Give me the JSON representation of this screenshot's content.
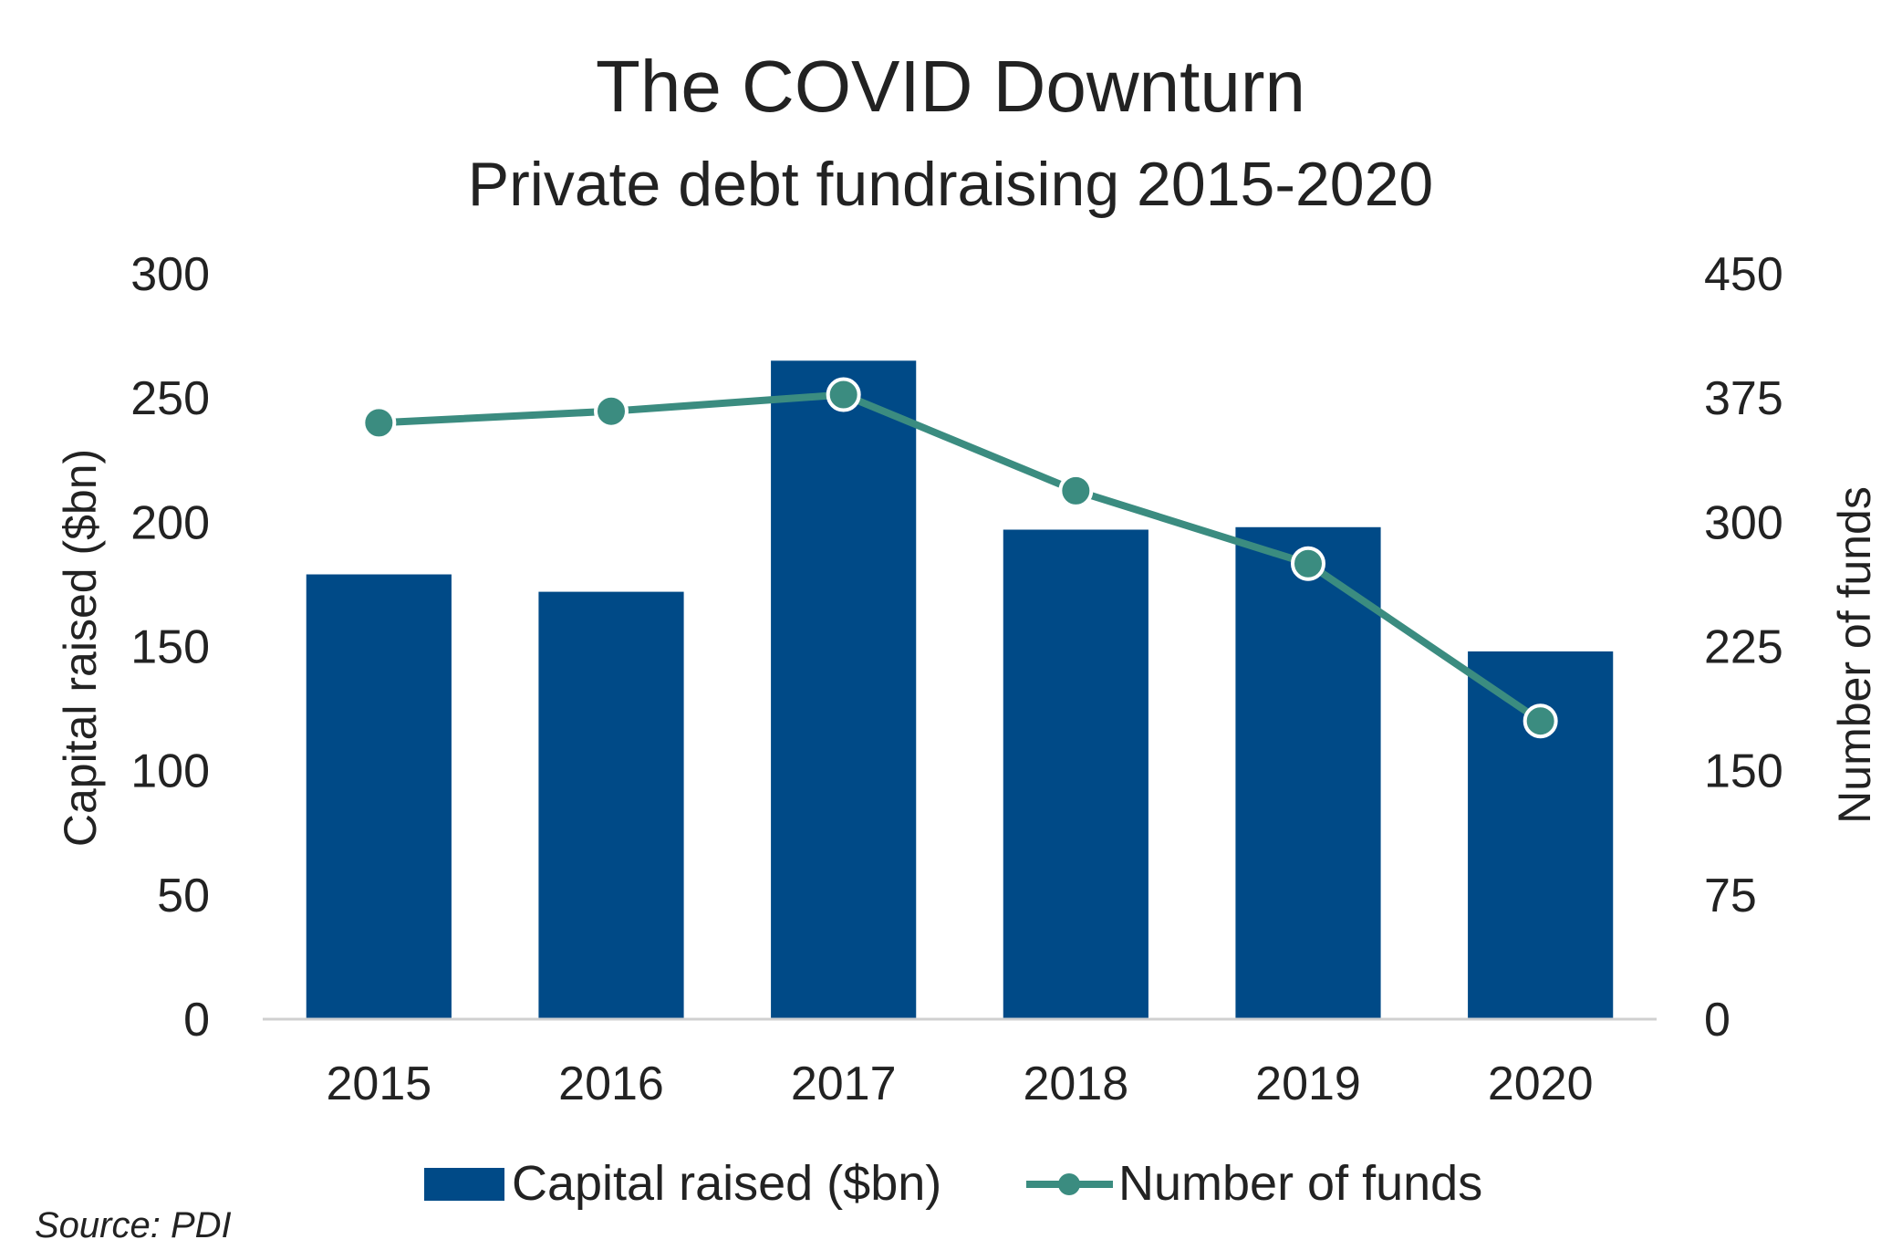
{
  "chart_data": {
    "type": "bar+line",
    "title": "The COVID Downturn",
    "subtitle": "Private debt fundraising 2015-2020",
    "categories": [
      "2015",
      "2016",
      "2017",
      "2018",
      "2019",
      "2020"
    ],
    "series": [
      {
        "name": "Capital raised ($bn)",
        "type": "bar",
        "axis": "left",
        "color": "#004A87",
        "values": [
          179,
          172,
          265,
          197,
          198,
          148
        ]
      },
      {
        "name": "Number of funds",
        "type": "line",
        "axis": "right",
        "color": "#3B8C80",
        "values": [
          360,
          367,
          377,
          319,
          275,
          180
        ]
      }
    ],
    "y_left": {
      "label": "Capital raised ($bn)",
      "lim": [
        0,
        300
      ],
      "ticks": [
        "0",
        "50",
        "100",
        "150",
        "200",
        "250",
        "300"
      ]
    },
    "y_right": {
      "label": "Number of funds",
      "lim": [
        0,
        450
      ],
      "ticks": [
        "0",
        "75",
        "150",
        "225",
        "300",
        "375",
        "450"
      ]
    },
    "grid": false,
    "legend_position": "bottom",
    "source": "Source: PDI"
  }
}
